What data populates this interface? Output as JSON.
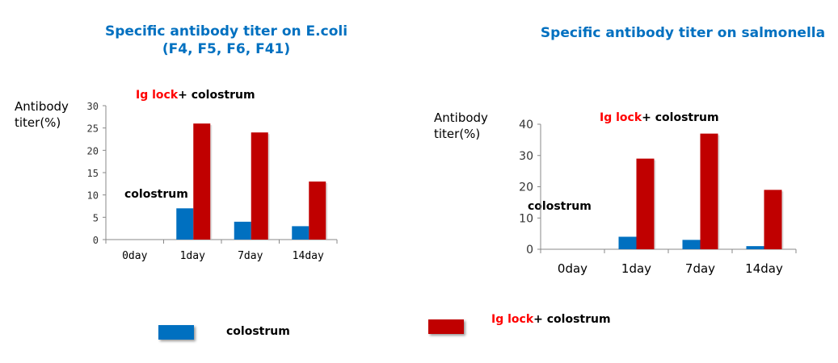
{
  "chart_data": [
    {
      "type": "bar",
      "title": "Specific antibody  titer on E.coli\n(F4, F5, F6, F41)",
      "title_lines": [
        "Specific antibody  titer on E.coli",
        "(F4, F5, F6, F41)"
      ],
      "ylabel_lines": [
        "Antibody",
        "titer(%)"
      ],
      "categories": [
        "0day",
        "1day",
        "7day",
        "14day"
      ],
      "ylim": [
        0,
        30
      ],
      "yticks": [
        0,
        5,
        10,
        15,
        20,
        25,
        30
      ],
      "grid": false,
      "series": [
        {
          "name": "colostrum",
          "values": [
            0,
            7,
            4,
            3
          ],
          "color": "#0070c0"
        },
        {
          "name": "Ig lock+ colostrum",
          "values": [
            0,
            26,
            24,
            13
          ],
          "color": "#c00000"
        }
      ],
      "annotations": {
        "top_red": "Ig lock",
        "top_black": "+ colostrum",
        "low": "colostrum"
      }
    },
    {
      "type": "bar",
      "title": "Specific antibody  titer on salmonella",
      "title_lines": [
        "Specific antibody  titer on salmonella"
      ],
      "ylabel_lines": [
        "Antibody",
        "titer(%)"
      ],
      "categories": [
        "0day",
        "1day",
        "7day",
        "14day"
      ],
      "ylim": [
        0,
        40
      ],
      "yticks": [
        0,
        10,
        20,
        30,
        40
      ],
      "grid": false,
      "series": [
        {
          "name": "colostrum",
          "values": [
            0,
            4,
            3,
            1
          ],
          "color": "#0070c0"
        },
        {
          "name": "Ig lock+ colostrum",
          "values": [
            0,
            29,
            37,
            19
          ],
          "color": "#c00000"
        }
      ],
      "annotations": {
        "top_red": "Ig lock",
        "top_black": "+ colostrum",
        "low": "colostrum"
      }
    }
  ],
  "legend": {
    "placement": "bottom",
    "items": [
      {
        "label": "colostrum",
        "color": "#0070c0"
      },
      {
        "label_red": "Ig lock",
        "label_black": "+ colostrum",
        "color": "#c00000"
      }
    ]
  }
}
